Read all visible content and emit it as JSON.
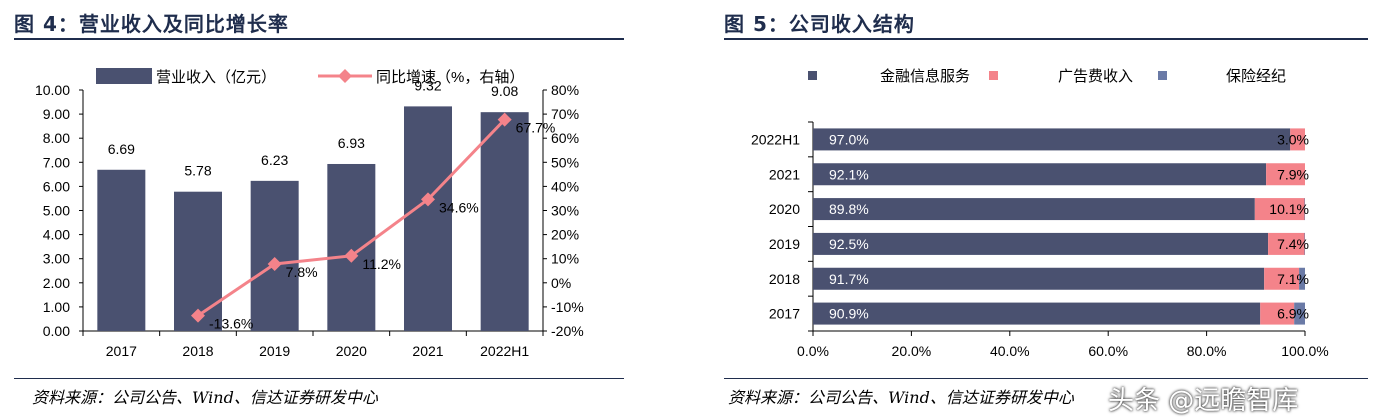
{
  "left": {
    "figure_title": "图 4：营业收入及同比增长率",
    "source": "资料来源：公司公告、Wind、信达证券研发中心"
  },
  "right": {
    "figure_title": "图 5：公司收入结构",
    "source": "资料来源：公司公告、Wind、信达证券研发中心"
  },
  "watermark": "头条 @远瞻智库",
  "chart_data": [
    {
      "type": "bar",
      "categories": [
        "2017",
        "2018",
        "2019",
        "2020",
        "2021",
        "2022H1"
      ],
      "series": [
        {
          "name": "营业收入（亿元）",
          "type": "bar",
          "axis": "left",
          "values": [
            6.69,
            5.78,
            6.23,
            6.93,
            9.32,
            9.08
          ],
          "labels": [
            "6.69",
            "5.78",
            "6.23",
            "6.93",
            "9.32",
            "9.08"
          ]
        },
        {
          "name": "同比增速（%，右轴）",
          "type": "line",
          "axis": "right",
          "values": [
            null,
            -13.6,
            7.8,
            11.2,
            34.6,
            67.7
          ],
          "labels": [
            "",
            "-13.6%",
            "7.8%",
            "11.2%",
            "34.6%",
            "67.7%"
          ]
        }
      ],
      "ylim": [
        0,
        10
      ],
      "y_ticks": [
        "0.00",
        "1.00",
        "2.00",
        "3.00",
        "4.00",
        "5.00",
        "6.00",
        "7.00",
        "8.00",
        "9.00",
        "10.00"
      ],
      "y2lim": [
        -20,
        80
      ],
      "y2_ticks": [
        "-20%",
        "-10%",
        "0%",
        "10%",
        "20%",
        "30%",
        "40%",
        "50%",
        "60%",
        "70%",
        "80%"
      ],
      "legend": "top",
      "colors": {
        "bar": "#4a5170",
        "line": "#f4838a"
      }
    },
    {
      "type": "bar",
      "orientation": "horizontal",
      "stacked": true,
      "categories": [
        "2022H1",
        "2021",
        "2020",
        "2019",
        "2018",
        "2017"
      ],
      "series": [
        {
          "name": "金融信息服务",
          "values": [
            97.0,
            92.1,
            89.8,
            92.5,
            91.7,
            90.9
          ],
          "labels": [
            "97.0%",
            "92.1%",
            "89.8%",
            "92.5%",
            "91.7%",
            "90.9%"
          ]
        },
        {
          "name": "广告费收入",
          "values": [
            3.0,
            7.9,
            10.1,
            7.4,
            7.1,
            6.9
          ],
          "labels": [
            "3.0%",
            "7.9%",
            "10.1%",
            "7.4%",
            "7.1%",
            "6.9%"
          ]
        },
        {
          "name": "保险经纪",
          "values": [
            0.0,
            0.0,
            0.1,
            0.1,
            1.2,
            2.2
          ],
          "labels": [
            "",
            "",
            "",
            "",
            "",
            ""
          ]
        }
      ],
      "xlim": [
        0,
        100
      ],
      "x_ticks": [
        "0.0%",
        "20.0%",
        "40.0%",
        "60.0%",
        "80.0%",
        "100.0%"
      ],
      "legend": "top",
      "colors": {
        "金融信息服务": "#4a5170",
        "广告费收入": "#f4838a",
        "保险经纪": "#6a7aa6"
      }
    }
  ]
}
